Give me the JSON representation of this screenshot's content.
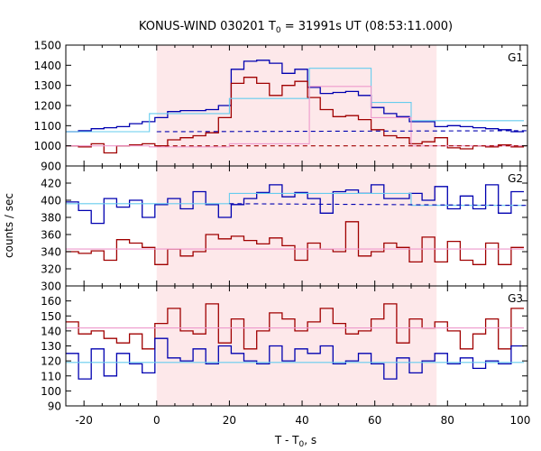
{
  "figure": {
    "title_main": "KONUS-WIND 030201 T",
    "title_sub": "0",
    "title_rest": " = 31991s UT (08:53:11.000)",
    "xlabel_main": "T - T",
    "xlabel_sub": "0",
    "xlabel_rest": ", s",
    "ylabel": "counts / sec"
  },
  "colors": {
    "data_blue": "#0000b0",
    "data_red": "#a00000",
    "fit_cyan": "#66ccee",
    "fit_pink": "#ee99cc",
    "highlight": "#fde8ea"
  },
  "chart_data": [
    {
      "type": "line",
      "panel": "G1",
      "xlim": [
        -25,
        102
      ],
      "ylim": [
        900,
        1500
      ],
      "yticks": [
        900,
        1000,
        1100,
        1200,
        1300,
        1400,
        1500
      ],
      "xticks": [
        -20,
        0,
        20,
        40,
        60,
        80,
        100
      ],
      "highlight_x": [
        0,
        77
      ],
      "series": [
        {
          "style": "step",
          "color": "blue",
          "bins": [
            -25,
            -21.5,
            -18,
            -14.5,
            -11,
            -7.5,
            -4,
            -0.5,
            3,
            6.5,
            10,
            13.5,
            17,
            20.5,
            24,
            27.5,
            31,
            34.5,
            38,
            41.5,
            45,
            48.5,
            52,
            55.5,
            59,
            62.5,
            66,
            69.5,
            73,
            76.5,
            80,
            83.5,
            87,
            90.5,
            94,
            97.5,
            101
          ],
          "values": [
            1070,
            1075,
            1085,
            1090,
            1095,
            1110,
            1120,
            1140,
            1170,
            1175,
            1175,
            1180,
            1200,
            1380,
            1420,
            1425,
            1410,
            1360,
            1380,
            1290,
            1260,
            1265,
            1270,
            1250,
            1190,
            1160,
            1145,
            1120,
            1120,
            1095,
            1100,
            1095,
            1090,
            1085,
            1080,
            1070
          ]
        },
        {
          "style": "step",
          "color": "red",
          "bins": [
            -25,
            -21.5,
            -18,
            -14.5,
            -11,
            -7.5,
            -4,
            -0.5,
            3,
            6.5,
            10,
            13.5,
            17,
            20.5,
            24,
            27.5,
            31,
            34.5,
            38,
            41.5,
            45,
            48.5,
            52,
            55.5,
            59,
            62.5,
            66,
            69.5,
            73,
            76.5,
            80,
            83.5,
            87,
            90.5,
            94,
            97.5,
            101
          ],
          "values": [
            1000,
            995,
            1010,
            965,
            1000,
            1005,
            1010,
            1000,
            1030,
            1040,
            1050,
            1065,
            1140,
            1310,
            1340,
            1310,
            1250,
            1300,
            1320,
            1240,
            1180,
            1145,
            1150,
            1130,
            1080,
            1050,
            1040,
            1010,
            1020,
            1040,
            990,
            985,
            1000,
            995,
            1005,
            995
          ]
        },
        {
          "style": "step",
          "color": "cyan",
          "bins": [
            -25,
            -2,
            20,
            42,
            59,
            70,
            101
          ],
          "values": [
            1070,
            1160,
            1235,
            1385,
            1215,
            1125
          ]
        },
        {
          "style": "step",
          "color": "pink",
          "bins": [
            -25,
            -2,
            20,
            42,
            59,
            70,
            101
          ],
          "values": [
            1000,
            995,
            1010,
            1295,
            1140,
            1000
          ]
        },
        {
          "style": "dashed",
          "color": "blue",
          "x": [
            0,
            102
          ],
          "y": [
            1070,
            1075
          ]
        },
        {
          "style": "dashed",
          "color": "red",
          "x": [
            0,
            102
          ],
          "y": [
            1000,
            1000
          ]
        }
      ],
      "label": "G1"
    },
    {
      "type": "line",
      "panel": "G2",
      "xlim": [
        -25,
        102
      ],
      "ylim": [
        300,
        440
      ],
      "yticks": [
        300,
        320,
        340,
        360,
        380,
        400,
        420
      ],
      "xticks": [
        -20,
        0,
        20,
        40,
        60,
        80,
        100
      ],
      "highlight_x": [
        0,
        77
      ],
      "series": [
        {
          "style": "step",
          "color": "blue",
          "bins": [
            -25,
            -21.5,
            -18,
            -14.5,
            -11,
            -7.5,
            -4,
            -0.5,
            3,
            6.5,
            10,
            13.5,
            17,
            20.5,
            24,
            27.5,
            31,
            34.5,
            38,
            41.5,
            45,
            48.5,
            52,
            55.5,
            59,
            62.5,
            66,
            69.5,
            73,
            76.5,
            80,
            83.5,
            87,
            90.5,
            94,
            97.5,
            101
          ],
          "values": [
            398,
            388,
            373,
            402,
            392,
            400,
            380,
            395,
            402,
            390,
            410,
            395,
            380,
            395,
            402,
            409,
            418,
            404,
            409,
            402,
            385,
            410,
            412,
            408,
            418,
            402,
            402,
            408,
            400,
            416,
            390,
            405,
            390,
            418,
            385,
            410
          ]
        },
        {
          "style": "step",
          "color": "red",
          "bins": [
            -25,
            -21.5,
            -18,
            -14.5,
            -11,
            -7.5,
            -4,
            -0.5,
            3,
            6.5,
            10,
            13.5,
            17,
            20.5,
            24,
            27.5,
            31,
            34.5,
            38,
            41.5,
            45,
            48.5,
            52,
            55.5,
            59,
            62.5,
            66,
            69.5,
            73,
            76.5,
            80,
            83.5,
            87,
            90.5,
            94,
            97.5,
            101
          ],
          "values": [
            340,
            338,
            341,
            330,
            354,
            350,
            345,
            325,
            343,
            335,
            340,
            360,
            355,
            358,
            353,
            349,
            356,
            347,
            330,
            350,
            343,
            340,
            375,
            335,
            340,
            350,
            345,
            328,
            357,
            328,
            352,
            330,
            325,
            350,
            325,
            345
          ]
        },
        {
          "style": "step",
          "color": "cyan",
          "bins": [
            -25,
            20,
            70,
            101
          ],
          "values": [
            396,
            408,
            394
          ]
        },
        {
          "style": "step",
          "color": "pink",
          "bins": [
            -25,
            101
          ],
          "values": [
            343
          ]
        },
        {
          "style": "dashed",
          "color": "blue",
          "x": [
            20,
            102
          ],
          "y": [
            396,
            394
          ]
        }
      ],
      "label": "G2"
    },
    {
      "type": "line",
      "panel": "G3",
      "xlim": [
        -25,
        102
      ],
      "ylim": [
        90,
        170
      ],
      "yticks": [
        90,
        100,
        110,
        120,
        130,
        140,
        150,
        160
      ],
      "xticks": [
        -20,
        0,
        20,
        40,
        60,
        80,
        100
      ],
      "highlight_x": [
        0,
        77
      ],
      "series": [
        {
          "style": "step",
          "color": "red",
          "bins": [
            -25,
            -21.5,
            -18,
            -14.5,
            -11,
            -7.5,
            -4,
            -0.5,
            3,
            6.5,
            10,
            13.5,
            17,
            20.5,
            24,
            27.5,
            31,
            34.5,
            38,
            41.5,
            45,
            48.5,
            52,
            55.5,
            59,
            62.5,
            66,
            69.5,
            73,
            76.5,
            80,
            83.5,
            87,
            90.5,
            94,
            97.5,
            101
          ],
          "values": [
            146,
            138,
            140,
            135,
            132,
            138,
            128,
            145,
            155,
            140,
            138,
            158,
            132,
            148,
            128,
            140,
            152,
            148,
            140,
            146,
            155,
            145,
            138,
            140,
            148,
            158,
            132,
            148,
            142,
            146,
            140,
            128,
            138,
            148,
            128,
            155
          ]
        },
        {
          "style": "step",
          "color": "blue",
          "bins": [
            -25,
            -21.5,
            -18,
            -14.5,
            -11,
            -7.5,
            -4,
            -0.5,
            3,
            6.5,
            10,
            13.5,
            17,
            20.5,
            24,
            27.5,
            31,
            34.5,
            38,
            41.5,
            45,
            48.5,
            52,
            55.5,
            59,
            62.5,
            66,
            69.5,
            73,
            76.5,
            80,
            83.5,
            87,
            90.5,
            94,
            97.5,
            101
          ],
          "values": [
            125,
            108,
            128,
            110,
            125,
            118,
            112,
            135,
            122,
            120,
            128,
            118,
            130,
            125,
            120,
            118,
            130,
            120,
            128,
            125,
            130,
            118,
            120,
            125,
            118,
            108,
            122,
            112,
            120,
            125,
            118,
            122,
            115,
            120,
            118,
            130
          ]
        },
        {
          "style": "step",
          "color": "pink",
          "bins": [
            -25,
            101
          ],
          "values": [
            142
          ]
        },
        {
          "style": "step",
          "color": "cyan",
          "bins": [
            -25,
            101
          ],
          "values": [
            119
          ]
        }
      ],
      "label": "G3"
    }
  ]
}
